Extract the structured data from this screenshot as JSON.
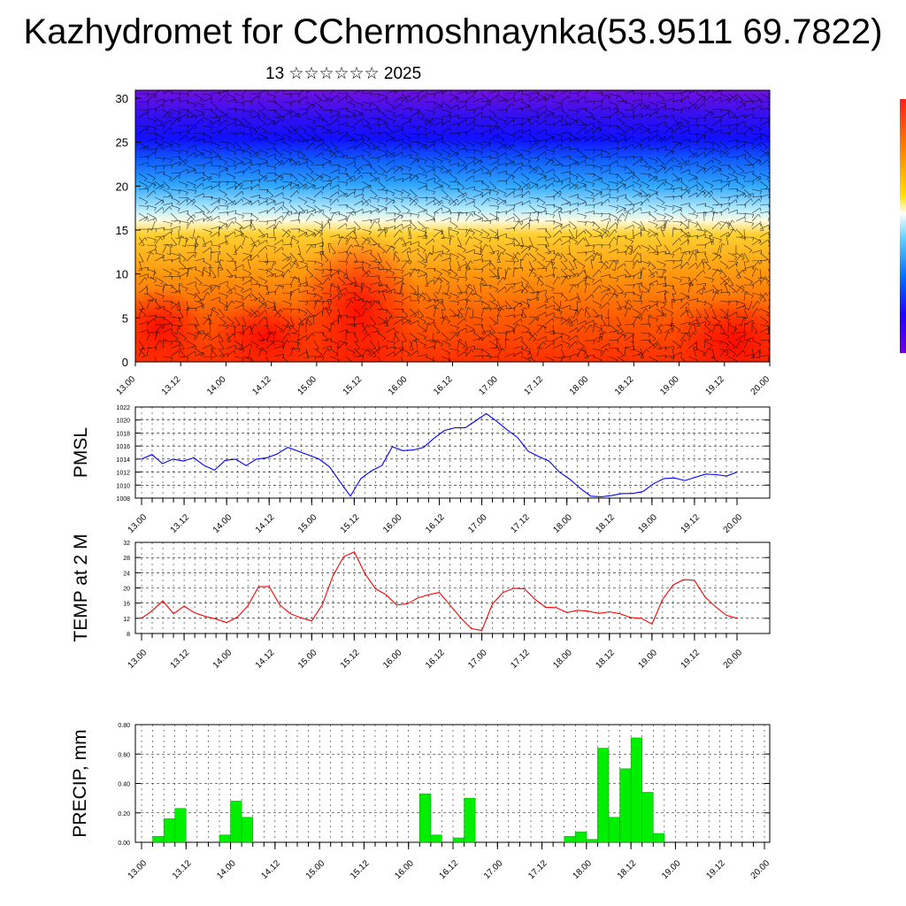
{
  "header": {
    "title": "Kazhydromet for CChermoshnaynka(53.9511 69.7822)",
    "subtitle": "13 ☆☆☆☆☆☆ 2025"
  },
  "x_ticks": [
    "13.00",
    "13.12",
    "14.00",
    "14.12",
    "15.00",
    "15.12",
    "16.00",
    "16.12",
    "17.00",
    "17.12",
    "18.00",
    "18.12",
    "19.00",
    "19.12",
    "20.00"
  ],
  "colors": {
    "pmsl_line": "#0000ff",
    "temp_line": "#ff0000",
    "precip_bar": "#00ee00"
  },
  "chart_data": [
    {
      "type": "heatmap",
      "title": "",
      "ylim": [
        0,
        30
      ],
      "yticks": [
        "0",
        "5",
        "10",
        "15",
        "20",
        "25",
        "30"
      ],
      "description_colormap": "rainbow (violet-blue-cyan-white-yellow-orange-red)",
      "overlay": "wind barbs",
      "colorbar_colors": [
        "#ff0000",
        "#ff4000",
        "#ff8000",
        "#ffc000",
        "#ffff80",
        "#ffffff",
        "#80e0ff",
        "#00a0ff",
        "#0040ff",
        "#2000ff",
        "#6000ff"
      ]
    },
    {
      "type": "line",
      "ylabel": "PMSL",
      "ylim": [
        1008,
        1022
      ],
      "yticks": [
        "1008",
        "1010",
        "1012",
        "1014",
        "1016",
        "1018",
        "1020",
        "1022"
      ],
      "step_hours": 3,
      "values": [
        1014.0,
        1014.7,
        1013.3,
        1014.0,
        1013.7,
        1014.2,
        1013.0,
        1012.3,
        1013.8,
        1014.0,
        1013.0,
        1014.0,
        1014.2,
        1014.8,
        1015.8,
        1015.2,
        1014.6,
        1014.0,
        1012.8,
        1010.5,
        1008.3,
        1011.0,
        1012.2,
        1013.0,
        1015.9,
        1015.3,
        1015.4,
        1015.8,
        1017.2,
        1018.4,
        1018.8,
        1018.8,
        1019.9,
        1021.0,
        1019.8,
        1018.5,
        1017.3,
        1015.2,
        1014.4,
        1013.7,
        1012.0,
        1010.9,
        1009.5,
        1008.3,
        1008.2,
        1008.4,
        1008.7,
        1008.7,
        1009.0,
        1010.2,
        1011.0,
        1011.1,
        1010.7,
        1011.2,
        1011.7,
        1011.6,
        1011.4,
        1012.0
      ]
    },
    {
      "type": "line",
      "ylabel": "TEMP at 2 M",
      "ylim": [
        8,
        32
      ],
      "yticks": [
        "8",
        "12",
        "16",
        "20",
        "24",
        "28",
        "32"
      ],
      "step_hours": 3,
      "values": [
        12.0,
        14.0,
        16.6,
        13.2,
        15.2,
        13.4,
        12.5,
        11.8,
        10.9,
        12.3,
        15.3,
        20.3,
        20.4,
        15.5,
        13.2,
        12.1,
        11.3,
        15.6,
        23.2,
        28.2,
        29.5,
        23.8,
        19.8,
        18.2,
        15.5,
        15.8,
        17.4,
        18.2,
        18.8,
        15.5,
        12.2,
        9.3,
        8.8,
        15.8,
        18.8,
        19.9,
        19.8,
        17.0,
        14.9,
        14.8,
        13.5,
        14.1,
        13.9,
        13.3,
        13.7,
        13.2,
        12.2,
        12.0,
        10.5,
        17.0,
        20.8,
        22.2,
        22.0,
        17.6,
        15.0,
        12.8,
        12.0
      ]
    },
    {
      "type": "bar",
      "ylabel": "PRECIP, mm",
      "ylim": [
        0,
        0.8
      ],
      "yticks": [
        "0.00",
        "0.20",
        "0.40",
        "0.60",
        "0.80"
      ],
      "step_hours": 3,
      "values": [
        0,
        0.04,
        0.16,
        0.23,
        0,
        0,
        0,
        0.05,
        0.28,
        0.17,
        0,
        0,
        0,
        0,
        0,
        0,
        0,
        0,
        0,
        0,
        0,
        0,
        0,
        0,
        0,
        0.33,
        0.05,
        0,
        0.03,
        0.3,
        0,
        0,
        0,
        0,
        0,
        0,
        0,
        0,
        0.04,
        0.07,
        0.02,
        0.64,
        0.17,
        0.5,
        0.71,
        0.34,
        0.06,
        0,
        0,
        0,
        0,
        0,
        0,
        0,
        0,
        0,
        0
      ]
    }
  ]
}
